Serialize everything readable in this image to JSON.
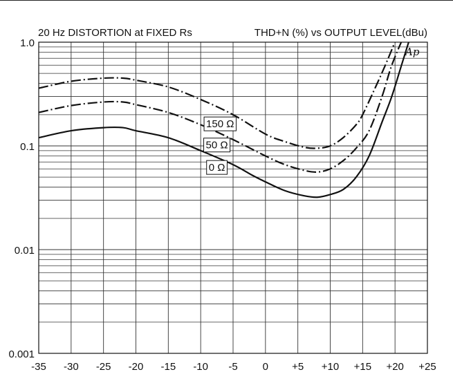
{
  "chart_data": {
    "type": "line",
    "title": "20 Hz DISTORTION at FIXED Rs",
    "subtitle": "THD+N (%) vs OUTPUT LEVEL(dBu)",
    "xlabel": "",
    "ylabel": "",
    "x_scale": "linear",
    "y_scale": "log",
    "xlim": [
      -35,
      25
    ],
    "ylim": [
      0.001,
      1.0
    ],
    "grid": true,
    "legend": "inline labels",
    "x_ticks": [
      -35,
      -30,
      -25,
      -20,
      -15,
      -10,
      -5,
      0,
      5,
      10,
      15,
      20,
      25
    ],
    "x_tick_labels": [
      "-35",
      "-30",
      "-25",
      "-20",
      "-15",
      "-10",
      "-5",
      "0",
      "+5",
      "+10",
      "+15",
      "+20",
      "+25"
    ],
    "y_ticks": [
      0.001,
      0.01,
      0.1,
      1.0
    ],
    "y_tick_labels": [
      "0.001",
      "0.01",
      "0.1",
      "1.0"
    ],
    "logo_text": "Ap",
    "series": [
      {
        "name": "150 Ω",
        "style": "dash-dot",
        "points": [
          [
            -35,
            0.36
          ],
          [
            -30,
            0.42
          ],
          [
            -25,
            0.45
          ],
          [
            -22,
            0.45
          ],
          [
            -20,
            0.43
          ],
          [
            -15,
            0.37
          ],
          [
            -10,
            0.28
          ],
          [
            -5,
            0.2
          ],
          [
            0,
            0.13
          ],
          [
            3,
            0.11
          ],
          [
            6,
            0.097
          ],
          [
            8,
            0.095
          ],
          [
            10,
            0.1
          ],
          [
            12,
            0.12
          ],
          [
            14,
            0.16
          ],
          [
            15,
            0.2
          ],
          [
            17,
            0.37
          ],
          [
            18.5,
            0.6
          ],
          [
            20.5,
            1.2
          ]
        ]
      },
      {
        "name": "50 Ω",
        "style": "dash-dot",
        "points": [
          [
            -35,
            0.21
          ],
          [
            -30,
            0.245
          ],
          [
            -25,
            0.265
          ],
          [
            -22,
            0.265
          ],
          [
            -20,
            0.25
          ],
          [
            -15,
            0.21
          ],
          [
            -10,
            0.16
          ],
          [
            -5,
            0.115
          ],
          [
            0,
            0.08
          ],
          [
            3,
            0.066
          ],
          [
            6,
            0.058
          ],
          [
            8,
            0.056
          ],
          [
            10,
            0.06
          ],
          [
            12,
            0.072
          ],
          [
            14,
            0.095
          ],
          [
            16,
            0.14
          ],
          [
            18,
            0.3
          ],
          [
            19.5,
            0.6
          ],
          [
            21.5,
            1.2
          ]
        ]
      },
      {
        "name": "0 Ω",
        "style": "solid",
        "points": [
          [
            -35,
            0.12
          ],
          [
            -30,
            0.14
          ],
          [
            -25,
            0.15
          ],
          [
            -22,
            0.15
          ],
          [
            -20,
            0.14
          ],
          [
            -15,
            0.12
          ],
          [
            -10,
            0.09
          ],
          [
            -5,
            0.066
          ],
          [
            -2,
            0.052
          ],
          [
            0,
            0.045
          ],
          [
            3,
            0.037
          ],
          [
            6,
            0.033
          ],
          [
            8,
            0.032
          ],
          [
            10,
            0.034
          ],
          [
            12,
            0.038
          ],
          [
            14,
            0.05
          ],
          [
            16,
            0.08
          ],
          [
            18,
            0.17
          ],
          [
            19.5,
            0.3
          ],
          [
            21,
            0.6
          ],
          [
            22.5,
            1.2
          ]
        ]
      }
    ]
  }
}
